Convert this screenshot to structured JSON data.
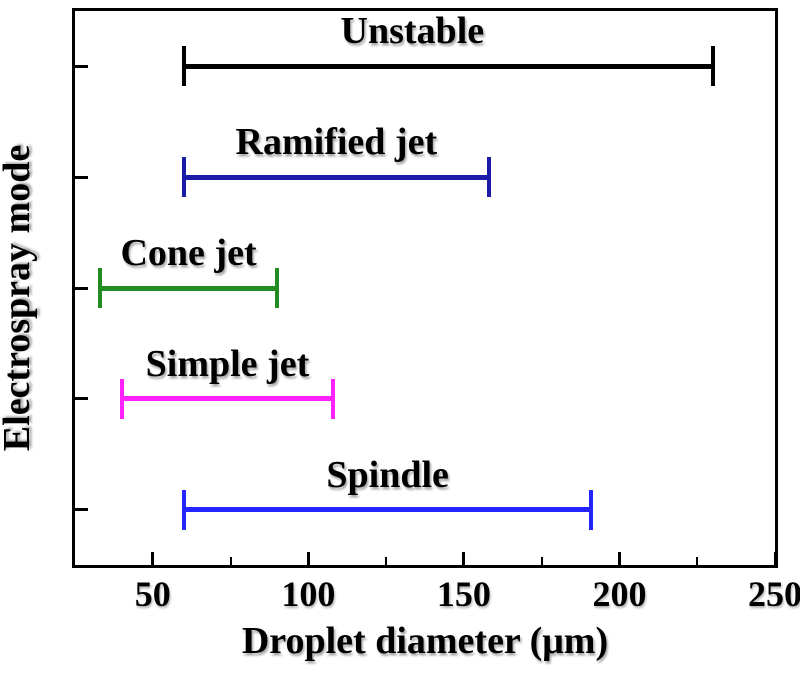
{
  "figure": {
    "background": "#ffffff",
    "frame_color": "#000000"
  },
  "chart_data": {
    "type": "bar",
    "orientation": "horizontal-range",
    "title": "",
    "xlabel": "Droplet diameter (μm)",
    "ylabel": "Electrospray mode",
    "xlim": [
      25,
      250
    ],
    "x_major_ticks": [
      "50",
      "100",
      "150",
      "200",
      "250"
    ],
    "x_major_tick_values": [
      50,
      100,
      150,
      200,
      250
    ],
    "x_minor_tick_values": [
      75,
      125,
      175,
      225
    ],
    "grid": false,
    "legend": false,
    "categories": [
      "Unstable",
      "Ramified jet",
      "Cone jet",
      "Simple jet",
      "Spindle"
    ],
    "series": [
      {
        "name": "Unstable",
        "label": "Unstable",
        "range_um": [
          60,
          230
        ],
        "color": "#000000"
      },
      {
        "name": "Ramified jet",
        "label": "Ramified jet",
        "range_um": [
          60,
          158
        ],
        "color": "#1c1ca8"
      },
      {
        "name": "Cone jet",
        "label": "Cone jet",
        "range_um": [
          33,
          90
        ],
        "color": "#228b22"
      },
      {
        "name": "Simple jet",
        "label": "Simple jet",
        "range_um": [
          40,
          108
        ],
        "color": "#ff22ff"
      },
      {
        "name": "Spindle",
        "label": "Spindle",
        "range_um": [
          60,
          191
        ],
        "color": "#2525ff"
      }
    ]
  }
}
